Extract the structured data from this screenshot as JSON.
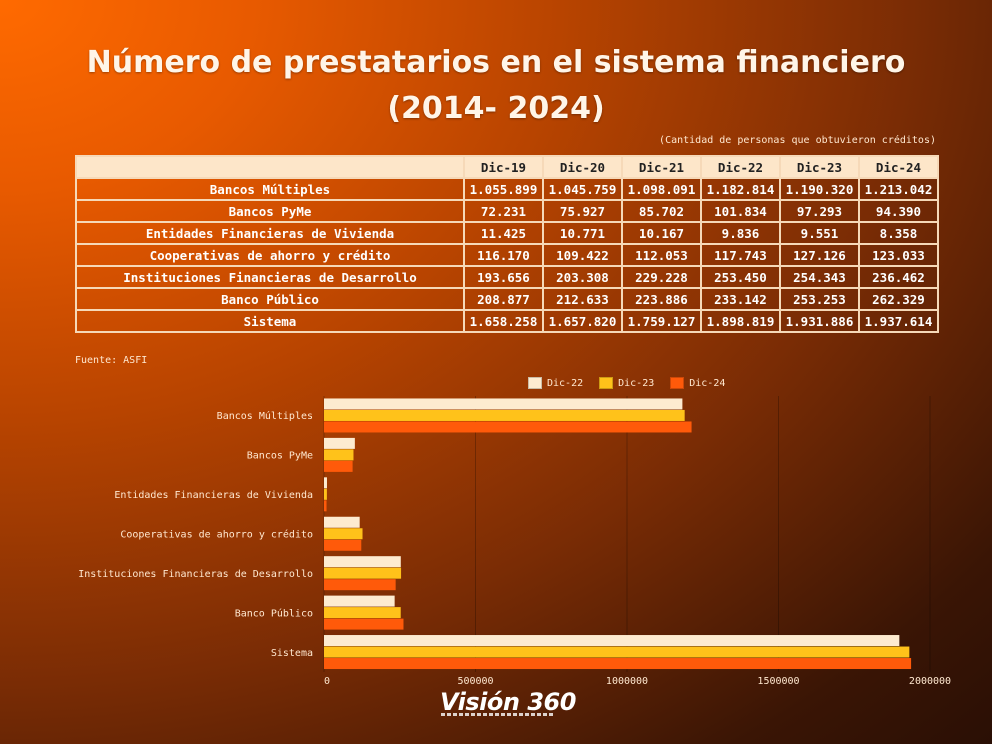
{
  "header": {
    "title_line1": "Número de prestatarios en el sistema financiero",
    "title_line2": "(2014- 2024)",
    "subtitle": "(Cantidad de personas que obtuvieron créditos)"
  },
  "table": {
    "columns": [
      "Dic-19",
      "Dic-20",
      "Dic-21",
      "Dic-22",
      "Dic-23",
      "Dic-24"
    ],
    "rows": [
      {
        "label": "Bancos Múltiples",
        "values": [
          "1.055.899",
          "1.045.759",
          "1.098.091",
          "1.182.814",
          "1.190.320",
          "1.213.042"
        ]
      },
      {
        "label": "Bancos PyMe",
        "values": [
          "72.231",
          "75.927",
          "85.702",
          "101.834",
          "97.293",
          "94.390"
        ]
      },
      {
        "label": "Entidades Financieras de Vivienda",
        "values": [
          "11.425",
          "10.771",
          "10.167",
          "9.836",
          "9.551",
          "8.358"
        ]
      },
      {
        "label": "Cooperativas de ahorro y crédito",
        "values": [
          "116.170",
          "109.422",
          "112.053",
          "117.743",
          "127.126",
          "123.033"
        ]
      },
      {
        "label": "Instituciones Financieras de Desarrollo",
        "values": [
          "193.656",
          "203.308",
          "229.228",
          "253.450",
          "254.343",
          "236.462"
        ]
      },
      {
        "label": "Banco Público",
        "values": [
          "208.877",
          "212.633",
          "223.886",
          "233.142",
          "253.253",
          "262.329"
        ]
      },
      {
        "label": "Sistema",
        "values": [
          "1.658.258",
          "1.657.820",
          "1.759.127",
          "1.898.819",
          "1.931.886",
          "1.937.614"
        ]
      }
    ]
  },
  "source": "Fuente: ASFI",
  "chart_data": {
    "type": "bar",
    "orientation": "horizontal",
    "categories": [
      "Bancos Múltiples",
      "Bancos PyMe",
      "Entidades Financieras de Vivienda",
      "Cooperativas de ahorro y crédito",
      "Instituciones Financieras de Desarrollo",
      "Banco Público",
      "Sistema"
    ],
    "series": [
      {
        "name": "Dic-22",
        "color": "#fdebd0",
        "values": [
          1182814,
          101834,
          9836,
          117743,
          253450,
          233142,
          1898819
        ]
      },
      {
        "name": "Dic-23",
        "color": "#ffc21a",
        "values": [
          1190320,
          97293,
          9551,
          127126,
          254343,
          253253,
          1931886
        ]
      },
      {
        "name": "Dic-24",
        "color": "#ff5a0a",
        "values": [
          1213042,
          94390,
          8358,
          123033,
          236462,
          262329,
          1937614
        ]
      }
    ],
    "xlim": [
      0,
      2000000
    ],
    "xticks": [
      "0",
      "500000",
      "1000000",
      "1500000",
      "2000000"
    ],
    "legend": "top",
    "grid": true
  },
  "logo": {
    "text": "Visión 360"
  }
}
